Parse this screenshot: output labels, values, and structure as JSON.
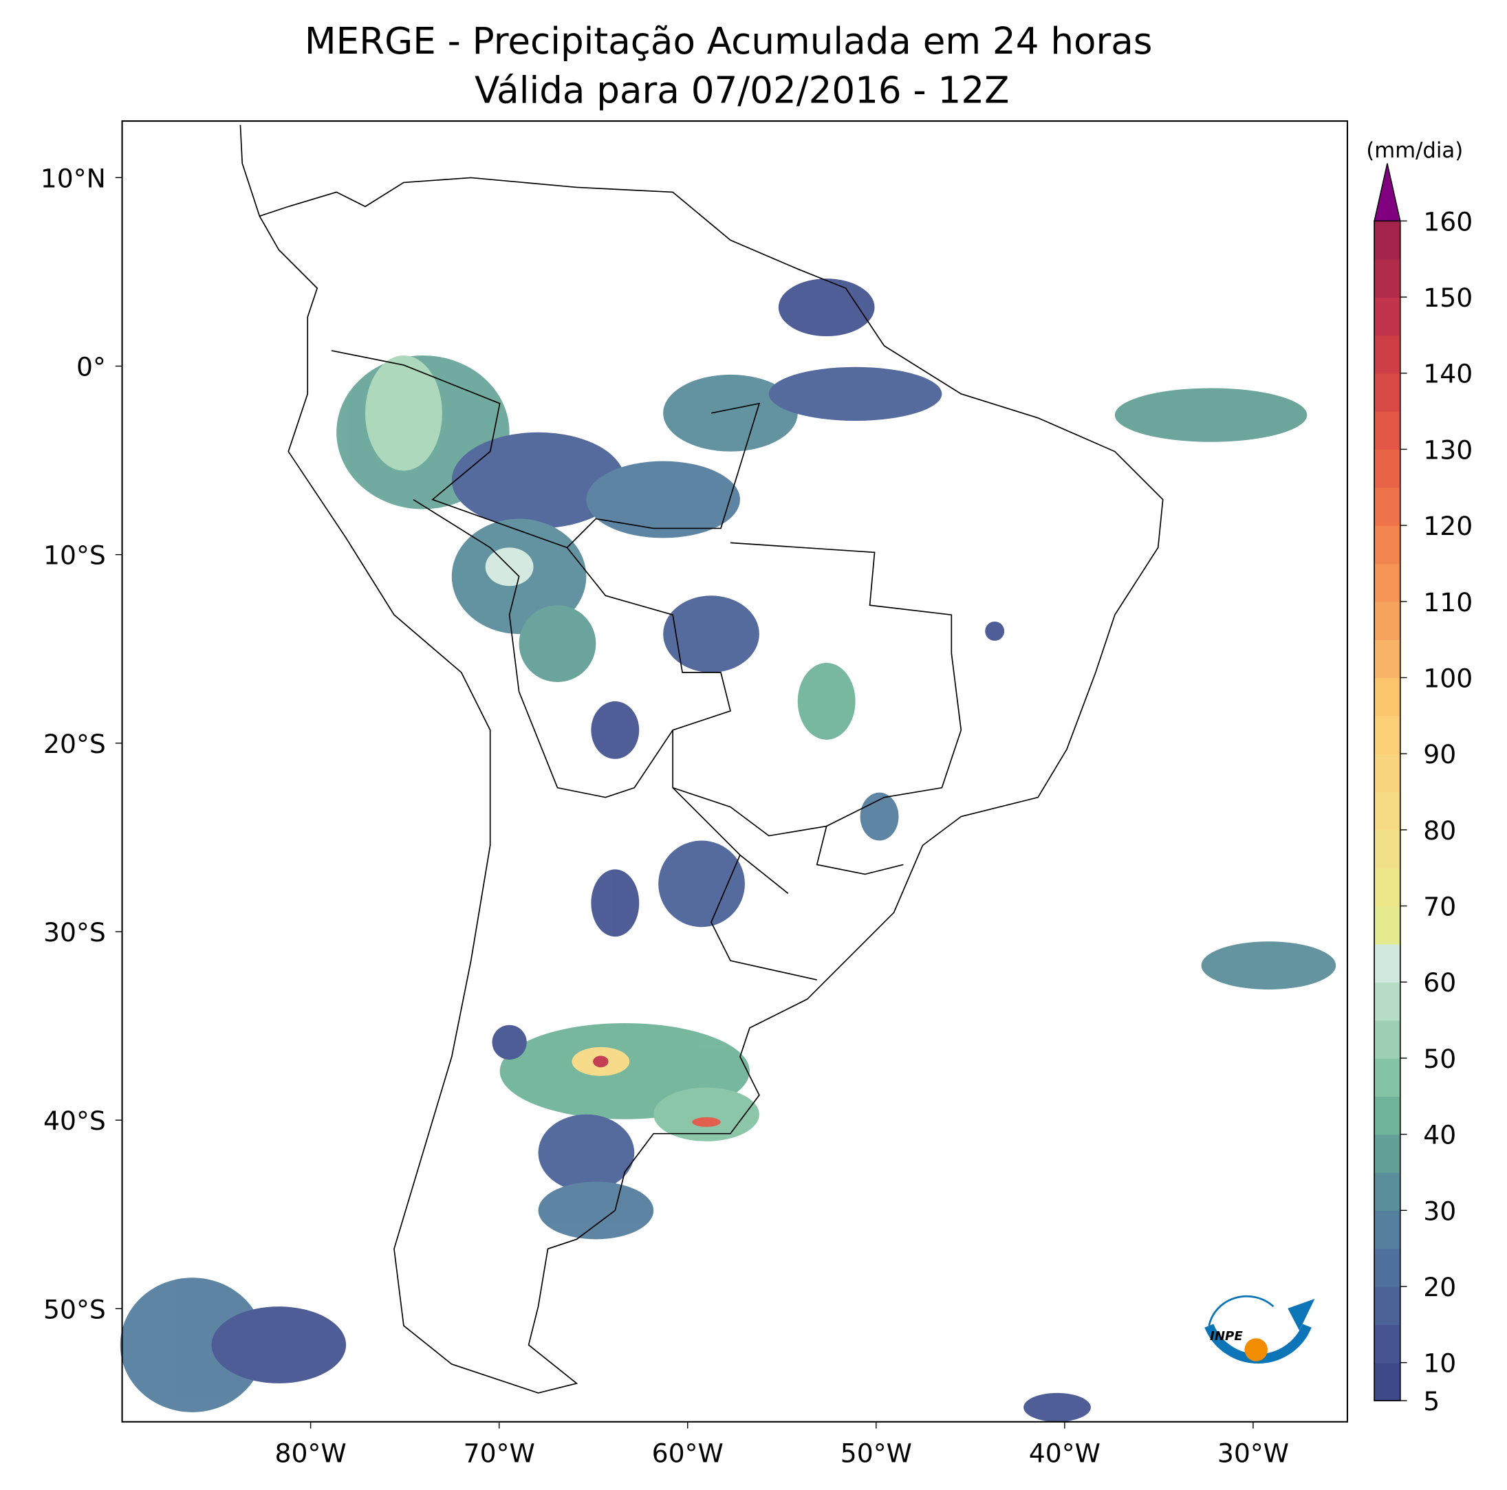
{
  "chart_data": {
    "type": "map",
    "title": "MERGE - Precipitação Acumulada em 24 horas",
    "subtitle": "Válida para 07/02/2016 - 12Z",
    "xlim": [
      -90,
      -25
    ],
    "ylim": [
      -56,
      13
    ],
    "xticks": [
      {
        "value": -80,
        "label": "80°W"
      },
      {
        "value": -70,
        "label": "70°W"
      },
      {
        "value": -60,
        "label": "60°W"
      },
      {
        "value": -50,
        "label": "50°W"
      },
      {
        "value": -40,
        "label": "40°W"
      },
      {
        "value": -30,
        "label": "30°W"
      }
    ],
    "yticks": [
      {
        "value": 10,
        "label": "10°N"
      },
      {
        "value": 0,
        "label": "0°"
      },
      {
        "value": -10,
        "label": "10°S"
      },
      {
        "value": -20,
        "label": "20°S"
      },
      {
        "value": -30,
        "label": "30°S"
      },
      {
        "value": -40,
        "label": "40°S"
      },
      {
        "value": -50,
        "label": "50°S"
      }
    ],
    "colorbar": {
      "label": "(mm/dia)",
      "lim": [
        5,
        160
      ],
      "ticks": [
        5,
        10,
        20,
        30,
        40,
        50,
        60,
        70,
        80,
        90,
        100,
        110,
        120,
        130,
        140,
        150,
        160
      ],
      "levels": [
        5,
        10,
        15,
        20,
        25,
        30,
        35,
        40,
        45,
        50,
        55,
        60,
        65,
        70,
        75,
        80,
        85,
        90,
        95,
        100,
        105,
        110,
        115,
        120,
        125,
        130,
        135,
        140,
        145,
        150,
        155,
        160
      ],
      "colors": [
        "#3e4989",
        "#465591",
        "#4c6398",
        "#50719d",
        "#557f9f",
        "#5b8e9b",
        "#63a097",
        "#70b499",
        "#85c4a4",
        "#9dd0b2",
        "#b8ddc7",
        "#d2e9df",
        "#e4ea8e",
        "#ede689",
        "#f2e088",
        "#f6db84",
        "#f9d57e",
        "#fbcf76",
        "#fbc56e",
        "#f8b466",
        "#f6a45d",
        "#f49555",
        "#f2844f",
        "#ef734a",
        "#e96446",
        "#e15645",
        "#d84a45",
        "#cd3e47",
        "#c1344b",
        "#b12b4b",
        "#a3244b"
      ],
      "extend_color": "#800080"
    },
    "logo_text": "INPE"
  }
}
